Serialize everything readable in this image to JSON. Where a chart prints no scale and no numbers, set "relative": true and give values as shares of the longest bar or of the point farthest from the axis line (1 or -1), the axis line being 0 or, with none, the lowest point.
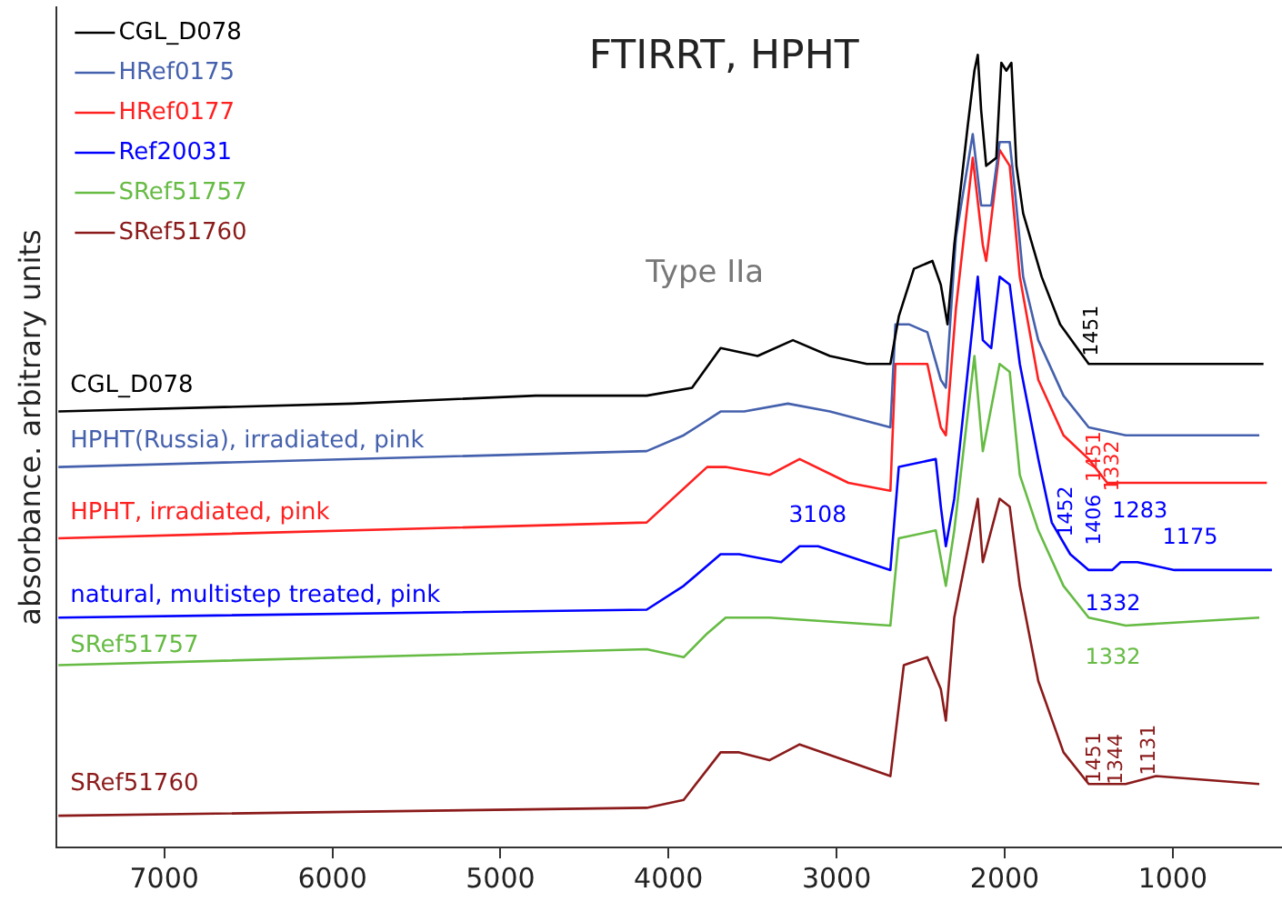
{
  "chart_data": {
    "type": "line",
    "title": "FTIRRT, HPHT",
    "ylabel": "absorbance. arbitrary units",
    "relative": true,
    "legend": "top left",
    "xlim": [
      7640,
      350
    ],
    "xticks": [
      7000,
      6000,
      5000,
      4000,
      3000,
      2000,
      1000
    ],
    "series": [
      {
        "name": "CGL_D078",
        "color": "#000000",
        "x": [
          7630,
          5880,
          4790,
          4130,
          3860,
          3690,
          3470,
          3260,
          3040,
          2820,
          2680,
          2630,
          2540,
          2430,
          2380,
          2340,
          2300,
          2220,
          2180,
          2160,
          2140,
          2110,
          2050,
          2020,
          1990,
          1960,
          1930,
          1890,
          1780,
          1670,
          1500,
          1280,
          630,
          460
        ],
        "values": [
          0.55,
          0.56,
          0.57,
          0.57,
          0.58,
          0.63,
          0.62,
          0.64,
          0.62,
          0.61,
          0.61,
          0.67,
          0.73,
          0.74,
          0.71,
          0.66,
          0.76,
          0.91,
          0.98,
          1,
          0.93,
          0.86,
          0.87,
          0.99,
          0.98,
          0.99,
          0.86,
          0.8,
          0.72,
          0.66,
          0.61,
          0.61,
          0.61,
          0.61
        ]
      },
      {
        "name": "HRef0175",
        "color": "#4561ad",
        "x": [
          7630,
          4130,
          3910,
          3690,
          3550,
          3290,
          3040,
          2680,
          2650,
          2570,
          2460,
          2380,
          2350,
          2290,
          2190,
          2140,
          2080,
          2030,
          1970,
          1940,
          1890,
          1800,
          1650,
          1500,
          1280,
          485
        ],
        "values": [
          0.48,
          0.5,
          0.52,
          0.55,
          0.55,
          0.56,
          0.55,
          0.53,
          0.66,
          0.66,
          0.65,
          0.59,
          0.58,
          0.77,
          0.9,
          0.81,
          0.81,
          0.89,
          0.89,
          0.83,
          0.72,
          0.64,
          0.57,
          0.53,
          0.52,
          0.52
        ]
      },
      {
        "name": "HRef0177",
        "color": "#ff2020",
        "x": [
          7630,
          4130,
          3770,
          3660,
          3400,
          3220,
          2930,
          2680,
          2650,
          2460,
          2380,
          2350,
          2290,
          2190,
          2130,
          2110,
          2030,
          1970,
          1910,
          1800,
          1650,
          1500,
          1390,
          1210,
          440
        ],
        "values": [
          0.39,
          0.41,
          0.48,
          0.48,
          0.47,
          0.49,
          0.46,
          0.45,
          0.61,
          0.61,
          0.53,
          0.52,
          0.68,
          0.87,
          0.76,
          0.74,
          0.88,
          0.86,
          0.72,
          0.59,
          0.52,
          0.49,
          0.46,
          0.46,
          0.46
        ]
      },
      {
        "name": "Ref20031",
        "color": "#0000ff",
        "x": [
          7630,
          4130,
          3910,
          3690,
          3580,
          3330,
          3220,
          3110,
          2680,
          2630,
          2410,
          2380,
          2350,
          2300,
          2160,
          2130,
          2080,
          2030,
          1970,
          1910,
          1800,
          1720,
          1610,
          1500,
          1360,
          1310,
          1210,
          990,
          410
        ],
        "values": [
          0.29,
          0.3,
          0.33,
          0.37,
          0.37,
          0.36,
          0.38,
          0.38,
          0.35,
          0.48,
          0.49,
          0.43,
          0.38,
          0.44,
          0.72,
          0.64,
          0.63,
          0.72,
          0.71,
          0.61,
          0.49,
          0.41,
          0.37,
          0.35,
          0.35,
          0.36,
          0.36,
          0.35,
          0.35
        ]
      },
      {
        "name": "SRef51757",
        "color": "#66bb44",
        "x": [
          7630,
          4130,
          3910,
          3770,
          3660,
          3400,
          2680,
          2630,
          2410,
          2350,
          2300,
          2180,
          2130,
          2030,
          1970,
          1910,
          1800,
          1650,
          1500,
          1280,
          485
        ],
        "values": [
          0.23,
          0.25,
          0.24,
          0.27,
          0.29,
          0.29,
          0.28,
          0.39,
          0.4,
          0.33,
          0.4,
          0.62,
          0.5,
          0.61,
          0.6,
          0.47,
          0.4,
          0.33,
          0.29,
          0.28,
          0.29
        ]
      },
      {
        "name": "SRef51760",
        "color": "#8b1a1a",
        "x": [
          7630,
          4130,
          3910,
          3690,
          3580,
          3400,
          3220,
          2680,
          2600,
          2460,
          2380,
          2350,
          2300,
          2160,
          2130,
          2030,
          1970,
          1910,
          1800,
          1650,
          1500,
          1280,
          1100,
          485
        ],
        "values": [
          0.04,
          0.05,
          0.06,
          0.12,
          0.12,
          0.11,
          0.13,
          0.09,
          0.23,
          0.24,
          0.2,
          0.16,
          0.29,
          0.44,
          0.36,
          0.44,
          0.43,
          0.33,
          0.21,
          0.12,
          0.08,
          0.08,
          0.09,
          0.08
        ]
      }
    ],
    "annotations": [
      "Type IIa",
      "CGL_D078",
      "HPHT(Russia), irradiated, pink",
      "HPHT, irradiated, pink",
      "natural, multistep treated, pink",
      "SRef51757",
      "SRef51760",
      "3108",
      "1451",
      "1451",
      "1332",
      "1452",
      "1406",
      "1283",
      "1175",
      "1332",
      "1332",
      "1451",
      "1344",
      "1131"
    ]
  }
}
